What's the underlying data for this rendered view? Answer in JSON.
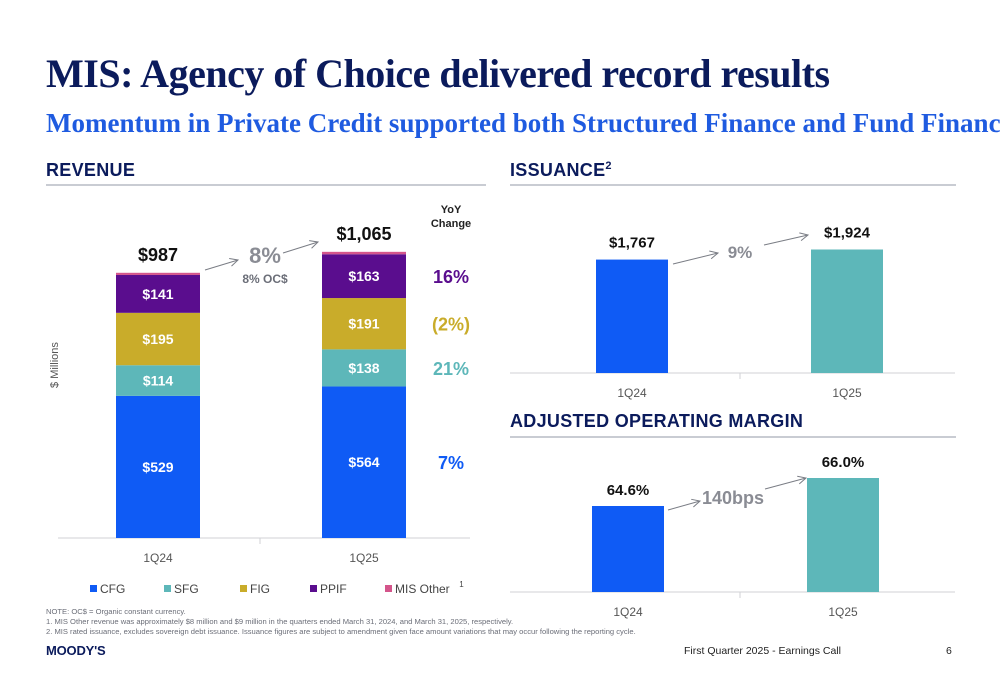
{
  "title": "MIS: Agency of Choice delivered record results",
  "subtitle": "Momentum in Private Credit supported both Structured Finance and Fund Finance",
  "revenue_section": {
    "heading": "REVENUE",
    "ylabel": "$ Millions",
    "yoy_label_1": "YoY",
    "yoy_label_2": "Change"
  },
  "issuance_section": {
    "heading": "ISSUANCE",
    "sup": "2"
  },
  "margin_section": {
    "heading": "ADJUSTED OPERATING MARGIN"
  },
  "colors": {
    "CFG": "#0f5bf5",
    "SFG": "#5db7b9",
    "FIG": "#c9ac2a",
    "PPIF": "#5a0d8e",
    "MIS Other": "#d4558b",
    "issuance_1Q25": "#5db7b9",
    "title": "#0b1b5c",
    "subtitle": "#1f5be0"
  },
  "chart_data": [
    {
      "type": "bar",
      "stacked": true,
      "categories": [
        "1Q24",
        "1Q25"
      ],
      "ylabel": "$ Millions",
      "ylim": [
        0,
        1100
      ],
      "totals": [
        "$987",
        "$1,065"
      ],
      "series": [
        {
          "name": "CFG",
          "values": [
            529,
            564
          ],
          "labels": [
            "$529",
            "$564"
          ],
          "yoy": "7%"
        },
        {
          "name": "SFG",
          "values": [
            114,
            138
          ],
          "labels": [
            "$114",
            "$138"
          ],
          "yoy": "21%"
        },
        {
          "name": "FIG",
          "values": [
            195,
            191
          ],
          "labels": [
            "$195",
            "$191"
          ],
          "yoy": "(2%)"
        },
        {
          "name": "PPIF",
          "values": [
            141,
            163
          ],
          "labels": [
            "$141",
            "$163"
          ],
          "yoy": "16%"
        },
        {
          "name": "MIS Other",
          "sup": "1",
          "values": [
            8,
            9
          ],
          "labels": [
            "",
            ""
          ],
          "yoy": ""
        }
      ],
      "change": {
        "main": "8%",
        "sub": "8% OC$"
      },
      "legend": "bottom"
    },
    {
      "type": "bar",
      "categories": [
        "1Q24",
        "1Q25"
      ],
      "values": [
        1767,
        1924
      ],
      "labels": [
        "$1,767",
        "$1,924"
      ],
      "ylim": [
        0,
        2150
      ],
      "change": "9%"
    },
    {
      "type": "bar",
      "categories": [
        "1Q24",
        "1Q25"
      ],
      "values": [
        64.6,
        66.0
      ],
      "labels": [
        "64.6%",
        "66.0%"
      ],
      "ylim": [
        0,
        75
      ],
      "change": "140bps"
    }
  ],
  "notes": [
    "NOTE: OC$ = Organic constant currency.",
    "1.      MIS Other revenue was approximately $8 million and $9 million in the quarters ended March 31, 2024, and March 31, 2025, respectively.",
    "2.      MIS rated issuance, excludes sovereign debt issuance. Issuance figures are subject to amendment given face amount variations that may occur following the reporting cycle."
  ],
  "footer": {
    "logo": "MOODY'S",
    "text": "First Quarter 2025 - Earnings Call",
    "page": "6"
  }
}
